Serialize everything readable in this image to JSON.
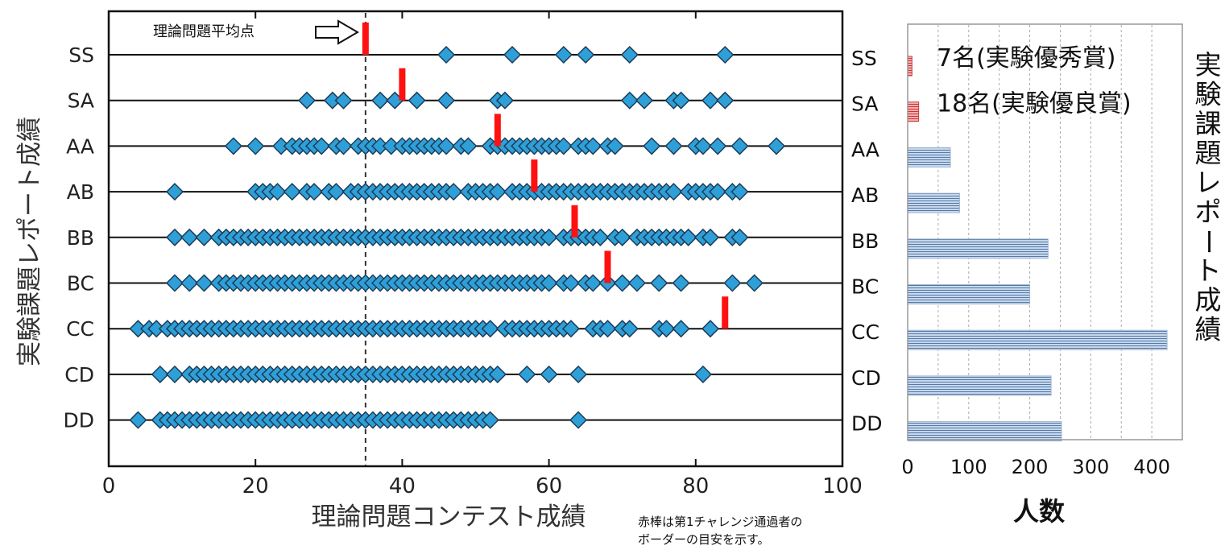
{
  "chart_data": [
    {
      "type": "scatter",
      "xlabel": "理論問題コンテスト成績",
      "ylabel": "実験課題レポート成績",
      "xlim": [
        0,
        100
      ],
      "xticks": [
        "0",
        "20",
        "40",
        "60",
        "80",
        "100"
      ],
      "categories": [
        "SS",
        "SA",
        "AA",
        "AB",
        "BB",
        "BC",
        "CC",
        "CD",
        "DD"
      ],
      "right_categories": [
        "SS",
        "SA",
        "AA",
        "AB",
        "BB",
        "BC",
        "CC",
        "CD",
        "DD"
      ],
      "average_line": {
        "x": 35,
        "label": "理論問題平均点"
      },
      "border_markers": {
        "SS": 35,
        "SA": 40,
        "AA": 53,
        "AB": 58,
        "BB": 63.5,
        "BC": 68,
        "CC": 84
      },
      "series": [
        {
          "category": "SS",
          "x": [
            46,
            55,
            62,
            65,
            71,
            84
          ]
        },
        {
          "category": "SA",
          "x": [
            27,
            30.5,
            32,
            37,
            39,
            42,
            46,
            53,
            54,
            71,
            73,
            77,
            78,
            82,
            84
          ]
        },
        {
          "category": "AA",
          "x": [
            17,
            20,
            23.5,
            25,
            26,
            27,
            28,
            29,
            31,
            32,
            34,
            35,
            36,
            37,
            38.5,
            40,
            41,
            42,
            43,
            44,
            45,
            46,
            48,
            49,
            52,
            53,
            54,
            55,
            56,
            57,
            58,
            59,
            60,
            61,
            62,
            64,
            65,
            66,
            68,
            69,
            74,
            77,
            80,
            81,
            83,
            86,
            91
          ]
        },
        {
          "category": "AB",
          "x": [
            9,
            20,
            21,
            22,
            23,
            25,
            27,
            28,
            30,
            31,
            33,
            34,
            35,
            36,
            37,
            38,
            39,
            40,
            41,
            42,
            43,
            44,
            45,
            46,
            47,
            49,
            50,
            51,
            52,
            53,
            55,
            56,
            57,
            58,
            59,
            60,
            61,
            62,
            63,
            64,
            65,
            66,
            67,
            68,
            69,
            70,
            71,
            72,
            73,
            74,
            75,
            76,
            77,
            79,
            80,
            81,
            82,
            83,
            85,
            86
          ]
        },
        {
          "category": "BB",
          "x": [
            9,
            11,
            13,
            15,
            16,
            17,
            18,
            19,
            20,
            21,
            22,
            23,
            24,
            25,
            26,
            27,
            28,
            29,
            30,
            31,
            32,
            33,
            34,
            35,
            36,
            37,
            38,
            39,
            40,
            41,
            42,
            43,
            44,
            45,
            46,
            47,
            48,
            49,
            50,
            51,
            52,
            53,
            54,
            55,
            56,
            57,
            58,
            59,
            60,
            62,
            63,
            64,
            65,
            66,
            67,
            69,
            70,
            72,
            73,
            74,
            75,
            76,
            77,
            78,
            79,
            81,
            82,
            85,
            86
          ]
        },
        {
          "category": "BC",
          "x": [
            9,
            11,
            13,
            15,
            16,
            17,
            18,
            19,
            20,
            21,
            22,
            23,
            24,
            25,
            26,
            27,
            28,
            29,
            30,
            31,
            32,
            33,
            34,
            35,
            36,
            37,
            38,
            39,
            40,
            41,
            42,
            43,
            44,
            45,
            46,
            47,
            48,
            49,
            50,
            51,
            52,
            53,
            54,
            55,
            56,
            57,
            58,
            59,
            60,
            62,
            63,
            65,
            66,
            68,
            70,
            72,
            75,
            78,
            85,
            88
          ]
        },
        {
          "category": "CC",
          "x": [
            4,
            5.5,
            6.5,
            8,
            9,
            10,
            11,
            12,
            13,
            14,
            15,
            16,
            17,
            18,
            19,
            20,
            21,
            22,
            23,
            24,
            25,
            26,
            27,
            28,
            29,
            30,
            31,
            32,
            33,
            34,
            35,
            36,
            37,
            38,
            39,
            40,
            41,
            42,
            43,
            44,
            45,
            46,
            47,
            48,
            49,
            50,
            51,
            52,
            54,
            55,
            56,
            57,
            58,
            59,
            60,
            61,
            62,
            63,
            66,
            67,
            68,
            70,
            71,
            75,
            76,
            78,
            82
          ]
        },
        {
          "category": "CD",
          "x": [
            7,
            9,
            11,
            12,
            13,
            14,
            15,
            16,
            17,
            18,
            19,
            20,
            21,
            22,
            23,
            24,
            25,
            26,
            27,
            28,
            29,
            30,
            31,
            32,
            33,
            34,
            35,
            36,
            37,
            38,
            39,
            40,
            41,
            42,
            43,
            44,
            45,
            46,
            47,
            48,
            49,
            50,
            51,
            52,
            53,
            57,
            60,
            64,
            81
          ]
        },
        {
          "category": "DD",
          "x": [
            4,
            7,
            8,
            9,
            10,
            11,
            12,
            13,
            14,
            15,
            16,
            17,
            18,
            19,
            20,
            21,
            22,
            23,
            24,
            25,
            26,
            27,
            28,
            29,
            30,
            31,
            32,
            33,
            34,
            35,
            36,
            37,
            38,
            39,
            40,
            41,
            42,
            43,
            44,
            45,
            46,
            47,
            48,
            49,
            50,
            51,
            52,
            64
          ]
        }
      ],
      "colors": {
        "diamond": "#2f9fd8",
        "diamond_edge": "#1b3c57",
        "border_marker": "#ff1111",
        "average_line": "#333333"
      },
      "note": [
        "赤棒は第1チャレンジ通過者の",
        "ボーダーの目安を示す。"
      ]
    },
    {
      "type": "bar",
      "orientation": "horizontal",
      "xlabel": "人数",
      "ylabel": "実験課題レポート成績",
      "xlim": [
        0,
        450
      ],
      "xticks": [
        "0",
        "100",
        "200",
        "300",
        "400"
      ],
      "categories": [
        "SS",
        "SA",
        "AA",
        "AB",
        "BB",
        "BC",
        "CC",
        "CD",
        "DD"
      ],
      "values": [
        7,
        18,
        70,
        85,
        230,
        200,
        425,
        235,
        252
      ],
      "annotations": [
        {
          "category": "SS",
          "text": "7名(実験優秀賞)"
        },
        {
          "category": "SA",
          "text": "18名(実験優良賞)"
        }
      ],
      "grid": "vertical dashed",
      "colors": {
        "bar_fill": "#c7d8ec",
        "bar_stripe": "#5579a8",
        "highlight": "#e05050"
      }
    }
  ]
}
